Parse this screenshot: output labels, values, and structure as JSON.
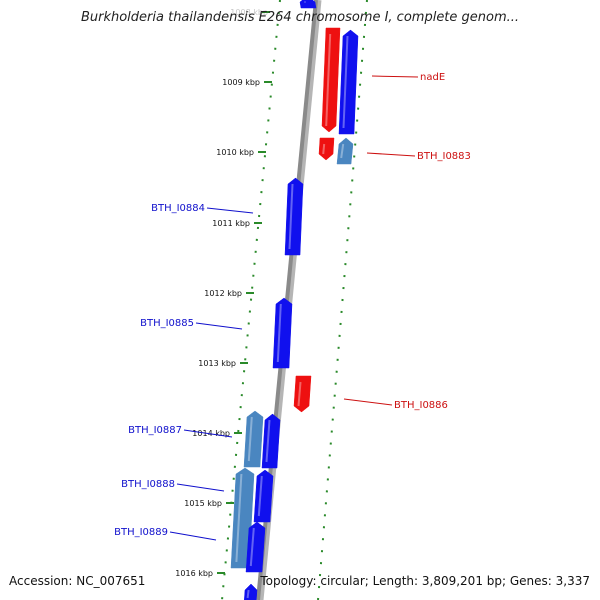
{
  "title": "Burkholderia thailandensis E264 chromosome I, complete genom...",
  "footer": {
    "accession": "Accession: NC_007651",
    "topology": "Topology: circular; Length: 3,809,201 bp; Genes: 3,337"
  },
  "colors": {
    "forward_gene": "#1010ee",
    "reverse_gene": "#ee1010",
    "pseudo_gene": "#4a86c0",
    "forward_label": "#1010cc",
    "reverse_label": "#cc1010",
    "backbone": "#8a8a8a",
    "tick_dots": "#2a8a2a"
  },
  "scale_labels": [
    "1008 kbp",
    "1009 kbp",
    "1010 kbp",
    "1011 kbp",
    "1012 kbp",
    "1013 kbp",
    "1014 kbp",
    "1015 kbp",
    "1016 kbp"
  ],
  "genes": [
    {
      "label": "",
      "strand": "forward",
      "kind": "gene"
    },
    {
      "label": "nadE",
      "strand": "reverse",
      "kind": "gene"
    },
    {
      "label": "nadE",
      "strand": "forward",
      "kind": "gene"
    },
    {
      "label": "BTH_I0883",
      "strand": "reverse",
      "kind": "gene"
    },
    {
      "label": "BTH_I0883",
      "strand": "forward",
      "kind": "pseudo"
    },
    {
      "label": "BTH_I0884",
      "strand": "forward",
      "kind": "gene"
    },
    {
      "label": "BTH_I0885",
      "strand": "forward",
      "kind": "gene"
    },
    {
      "label": "BTH_I0886",
      "strand": "reverse",
      "kind": "gene"
    },
    {
      "label": "BTH_I0887",
      "strand": "forward",
      "kind": "pseudo"
    },
    {
      "label": "BTH_I0887",
      "strand": "forward",
      "kind": "gene"
    },
    {
      "label": "BTH_I0888",
      "strand": "forward",
      "kind": "pseudo"
    },
    {
      "label": "BTH_I0888",
      "strand": "forward",
      "kind": "gene"
    },
    {
      "label": "BTH_I0889",
      "strand": "forward",
      "kind": "gene"
    },
    {
      "label": "",
      "strand": "forward",
      "kind": "gene"
    }
  ],
  "gene_labels": [
    "nadE",
    "BTH_I0883",
    "BTH_I0884",
    "BTH_I0885",
    "BTH_I0886",
    "BTH_I0887",
    "BTH_I0888",
    "BTH_I0889"
  ]
}
